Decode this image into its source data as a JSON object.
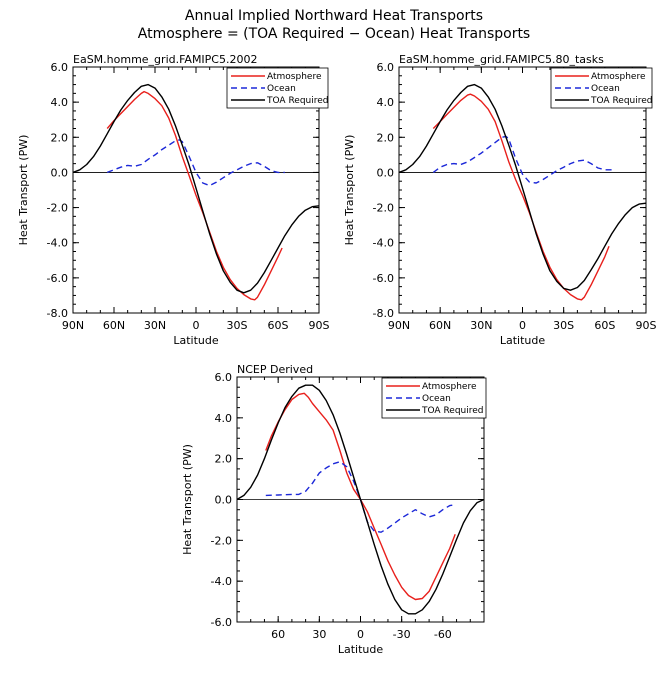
{
  "figure": {
    "title_line1": "Annual Implied Northward Heat Transports",
    "title_line2": "Atmosphere = (TOA Required − Ocean) Heat Transports"
  },
  "chart_data": [
    {
      "type": "line",
      "title": "EaSM.homme_grid.FAMIPC5.2002",
      "xlabel": "Latitude",
      "ylabel": "Heat Transport (PW)",
      "xlim": [
        90,
        -90
      ],
      "ylim": [
        -8,
        6
      ],
      "xticks": [
        90,
        60,
        30,
        0,
        -30,
        -60,
        -90
      ],
      "xtick_labels": [
        "90N",
        "60N",
        "30N",
        "0",
        "30S",
        "60S",
        "90S"
      ],
      "yticks": [
        6,
        4,
        2,
        0,
        -2,
        -4,
        -6,
        -8
      ],
      "ytick_labels": [
        "6.0",
        "4.0",
        "2.0",
        "0.0",
        "-2.0",
        "-4.0",
        "-6.0",
        "-8.0"
      ],
      "legend": [
        "Atmosphere",
        "Ocean",
        "TOA Required"
      ],
      "legend_position": "top-right",
      "series": [
        {
          "name": "Atmosphere",
          "color": "#e8201c",
          "dash": "solid",
          "x": [
            65,
            60,
            55,
            50,
            45,
            40,
            38,
            35,
            30,
            25,
            20,
            15,
            10,
            5,
            0,
            -5,
            -10,
            -15,
            -20,
            -25,
            -30,
            -35,
            -40,
            -43,
            -45,
            -50,
            -55,
            -60,
            -63
          ],
          "y": [
            2.5,
            2.95,
            3.35,
            3.75,
            4.15,
            4.5,
            4.6,
            4.5,
            4.2,
            3.8,
            3.1,
            2.1,
            0.9,
            -0.2,
            -1.3,
            -2.3,
            -3.4,
            -4.5,
            -5.4,
            -6.1,
            -6.6,
            -6.95,
            -7.2,
            -7.25,
            -7.1,
            -6.4,
            -5.6,
            -4.8,
            -4.3
          ]
        },
        {
          "name": "Ocean",
          "color": "#1c28d8",
          "dash": "dashed",
          "x": [
            65,
            60,
            55,
            50,
            45,
            40,
            35,
            30,
            25,
            20,
            15,
            12,
            10,
            5,
            0,
            -5,
            -10,
            -15,
            -20,
            -25,
            -30,
            -35,
            -40,
            -45,
            -50,
            -55,
            -60,
            -65
          ],
          "y": [
            0.0,
            0.15,
            0.3,
            0.4,
            0.35,
            0.45,
            0.75,
            1.0,
            1.3,
            1.55,
            1.8,
            1.85,
            1.75,
            0.9,
            0.0,
            -0.6,
            -0.75,
            -0.55,
            -0.3,
            -0.05,
            0.15,
            0.35,
            0.5,
            0.55,
            0.35,
            0.1,
            0.0,
            0.0
          ]
        },
        {
          "name": "TOA Required",
          "color": "#000000",
          "dash": "solid",
          "x": [
            90,
            85,
            80,
            75,
            70,
            65,
            60,
            55,
            50,
            45,
            40,
            35,
            30,
            25,
            20,
            15,
            10,
            5,
            0,
            -5,
            -10,
            -15,
            -20,
            -25,
            -30,
            -35,
            -40,
            -45,
            -50,
            -55,
            -60,
            -65,
            -70,
            -75,
            -80,
            -85,
            -90
          ],
          "y": [
            0.0,
            0.15,
            0.45,
            0.9,
            1.5,
            2.2,
            2.9,
            3.55,
            4.1,
            4.55,
            4.9,
            5.0,
            4.8,
            4.3,
            3.6,
            2.65,
            1.55,
            0.4,
            -0.9,
            -2.2,
            -3.5,
            -4.65,
            -5.6,
            -6.25,
            -6.7,
            -6.85,
            -6.7,
            -6.3,
            -5.7,
            -5.0,
            -4.3,
            -3.6,
            -3.0,
            -2.5,
            -2.15,
            -1.95,
            -1.9
          ]
        }
      ]
    },
    {
      "type": "line",
      "title": "EaSM.homme_grid.FAMIPC5.80_tasks",
      "xlabel": "Latitude",
      "ylabel": "Heat Transport (PW)",
      "xlim": [
        90,
        -90
      ],
      "ylim": [
        -8,
        6
      ],
      "xticks": [
        90,
        60,
        30,
        0,
        -30,
        -60,
        -90
      ],
      "xtick_labels": [
        "90N",
        "60N",
        "30N",
        "0",
        "30S",
        "60S",
        "90S"
      ],
      "yticks": [
        6,
        4,
        2,
        0,
        -2,
        -4,
        -6,
        -8
      ],
      "ytick_labels": [
        "6.0",
        "4.0",
        "2.0",
        "0.0",
        "-2.0",
        "-4.0",
        "-6.0",
        "-8.0"
      ],
      "legend": [
        "Atmosphere",
        "Ocean",
        "TOA Required"
      ],
      "legend_position": "top-right",
      "series": [
        {
          "name": "Atmosphere",
          "color": "#e8201c",
          "dash": "solid",
          "x": [
            65,
            60,
            55,
            50,
            45,
            40,
            38,
            35,
            30,
            25,
            20,
            15,
            10,
            5,
            0,
            -5,
            -10,
            -15,
            -20,
            -25,
            -30,
            -35,
            -40,
            -43,
            -45,
            -50,
            -55,
            -60,
            -63
          ],
          "y": [
            2.5,
            2.9,
            3.3,
            3.7,
            4.1,
            4.4,
            4.45,
            4.35,
            4.05,
            3.6,
            2.9,
            1.8,
            0.6,
            -0.4,
            -1.3,
            -2.3,
            -3.4,
            -4.5,
            -5.4,
            -6.1,
            -6.6,
            -6.95,
            -7.2,
            -7.25,
            -7.1,
            -6.4,
            -5.6,
            -4.8,
            -4.2
          ]
        },
        {
          "name": "Ocean",
          "color": "#1c28d8",
          "dash": "dashed",
          "x": [
            65,
            60,
            55,
            50,
            45,
            40,
            35,
            30,
            25,
            20,
            15,
            12,
            10,
            5,
            0,
            -5,
            -10,
            -15,
            -20,
            -25,
            -30,
            -35,
            -40,
            -45,
            -50,
            -55,
            -60,
            -65
          ],
          "y": [
            0.0,
            0.3,
            0.45,
            0.5,
            0.45,
            0.6,
            0.85,
            1.1,
            1.4,
            1.7,
            2.0,
            2.05,
            1.9,
            0.8,
            -0.1,
            -0.55,
            -0.6,
            -0.4,
            -0.15,
            0.1,
            0.3,
            0.5,
            0.65,
            0.7,
            0.5,
            0.25,
            0.15,
            0.15
          ]
        },
        {
          "name": "TOA Required",
          "color": "#000000",
          "dash": "solid",
          "x": [
            90,
            85,
            80,
            75,
            70,
            65,
            60,
            55,
            50,
            45,
            40,
            35,
            30,
            25,
            20,
            15,
            10,
            5,
            0,
            -5,
            -10,
            -15,
            -20,
            -25,
            -30,
            -35,
            -40,
            -45,
            -50,
            -55,
            -60,
            -65,
            -70,
            -75,
            -80,
            -85,
            -90
          ],
          "y": [
            0.0,
            0.15,
            0.45,
            0.9,
            1.5,
            2.2,
            2.9,
            3.55,
            4.1,
            4.55,
            4.9,
            5.0,
            4.8,
            4.3,
            3.6,
            2.65,
            1.55,
            0.4,
            -0.9,
            -2.2,
            -3.5,
            -4.65,
            -5.6,
            -6.2,
            -6.6,
            -6.7,
            -6.55,
            -6.15,
            -5.55,
            -4.9,
            -4.2,
            -3.5,
            -2.9,
            -2.4,
            -2.0,
            -1.8,
            -1.75
          ]
        }
      ]
    },
    {
      "type": "line",
      "title": "NCEP Derived",
      "xlabel": "Latitude",
      "ylabel": "Heat Transport (PW)",
      "xlim": [
        90,
        -90
      ],
      "ylim": [
        -6,
        6
      ],
      "xticks": [
        60,
        30,
        0,
        -30,
        -60
      ],
      "xtick_labels": [
        "60",
        "30",
        "0",
        "-30",
        "-60"
      ],
      "yticks": [
        6,
        4,
        2,
        0,
        -2,
        -4,
        -6
      ],
      "ytick_labels": [
        "6.0",
        "4.0",
        "2.0",
        "0.0",
        "-2.0",
        "-4.0",
        "-6.0"
      ],
      "legend": [
        "Atmosphere",
        "Ocean",
        "TOA Required"
      ],
      "legend_position": "top-right",
      "series": [
        {
          "name": "Atmosphere",
          "color": "#e8201c",
          "dash": "solid",
          "x": [
            69,
            65,
            60,
            55,
            50,
            45,
            41,
            38,
            35,
            30,
            25,
            20,
            15,
            10,
            5,
            0,
            -5,
            -10,
            -15,
            -20,
            -25,
            -30,
            -35,
            -40,
            -45,
            -50,
            -55,
            -60,
            -65,
            -69
          ],
          "y": [
            2.4,
            3.1,
            3.8,
            4.4,
            4.9,
            5.15,
            5.2,
            5.0,
            4.7,
            4.3,
            3.9,
            3.4,
            2.4,
            1.3,
            0.5,
            0.0,
            -0.6,
            -1.4,
            -2.2,
            -3.0,
            -3.7,
            -4.3,
            -4.7,
            -4.9,
            -4.85,
            -4.5,
            -3.8,
            -3.1,
            -2.4,
            -1.7
          ]
        },
        {
          "name": "Ocean",
          "color": "#1c28d8",
          "dash": "dashed",
          "x": [
            69,
            60,
            50,
            45,
            40,
            35,
            30,
            25,
            20,
            15,
            10,
            5,
            0,
            -5,
            -10,
            -15,
            -20,
            -25,
            -30,
            -35,
            -40,
            -45,
            -50,
            -55,
            -60,
            -65,
            -69
          ],
          "y": [
            0.2,
            0.22,
            0.25,
            0.25,
            0.4,
            0.8,
            1.3,
            1.55,
            1.75,
            1.85,
            1.6,
            0.9,
            0.0,
            -1.1,
            -1.55,
            -1.6,
            -1.4,
            -1.15,
            -0.9,
            -0.7,
            -0.5,
            -0.7,
            -0.85,
            -0.75,
            -0.5,
            -0.3,
            -0.25
          ]
        },
        {
          "name": "TOA Required",
          "color": "#000000",
          "dash": "solid",
          "x": [
            90,
            85,
            80,
            75,
            70,
            65,
            60,
            55,
            50,
            45,
            40,
            35,
            30,
            25,
            20,
            15,
            10,
            5,
            0,
            -5,
            -10,
            -15,
            -20,
            -25,
            -30,
            -35,
            -40,
            -45,
            -50,
            -55,
            -60,
            -65,
            -70,
            -75,
            -80,
            -85,
            -90
          ],
          "y": [
            0.0,
            0.2,
            0.6,
            1.2,
            2.0,
            2.9,
            3.75,
            4.5,
            5.05,
            5.45,
            5.6,
            5.6,
            5.35,
            4.85,
            4.15,
            3.25,
            2.2,
            1.1,
            0.0,
            -1.1,
            -2.2,
            -3.25,
            -4.15,
            -4.9,
            -5.4,
            -5.6,
            -5.6,
            -5.4,
            -5.0,
            -4.4,
            -3.65,
            -2.8,
            -1.95,
            -1.15,
            -0.55,
            -0.15,
            0.0
          ]
        }
      ]
    }
  ]
}
